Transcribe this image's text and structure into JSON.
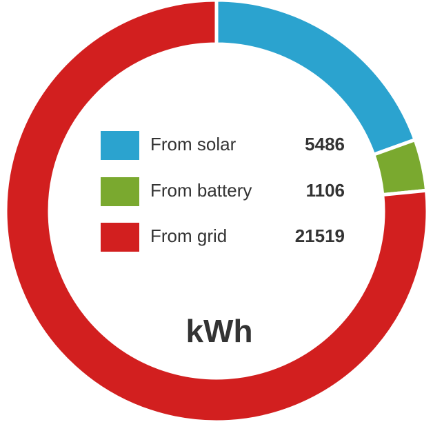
{
  "chart_data": {
    "type": "donut",
    "categories": [
      "From solar",
      "From battery",
      "From grid"
    ],
    "values": [
      5486,
      1106,
      21519
    ],
    "colors": [
      "#2ba3cf",
      "#7aa92f",
      "#d21f1f"
    ],
    "center_label": "kWh"
  }
}
